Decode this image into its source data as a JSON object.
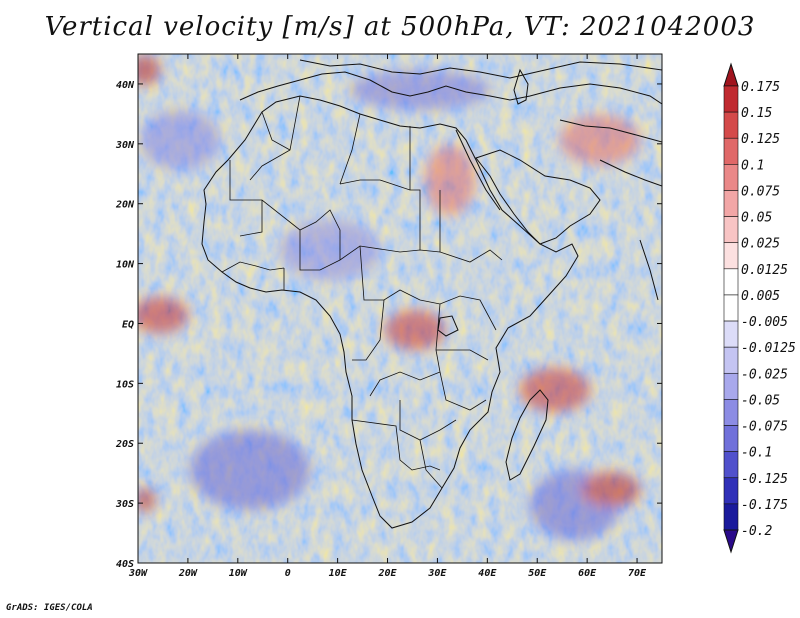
{
  "title": "Vertical velocity [m/s] at 500hPa, VT: 2021042003",
  "footer": "GrADS: IGES/COLA",
  "map": {
    "type": "filled contour map",
    "lon_range": [
      -30,
      75
    ],
    "lat_range": [
      -40,
      45
    ],
    "lat_ticks": [
      "40N",
      "30N",
      "20N",
      "10N",
      "EQ",
      "10S",
      "20S",
      "30S",
      "40S"
    ],
    "lon_ticks": [
      "30W",
      "20W",
      "10W",
      "0",
      "10E",
      "20E",
      "30E",
      "40E",
      "50E",
      "60E",
      "70E"
    ]
  },
  "colorbar": {
    "labels": [
      "0.175",
      "0.15",
      "0.125",
      "0.1",
      "0.075",
      "0.05",
      "0.025",
      "0.0125",
      "0.005",
      "-0.005",
      "-0.0125",
      "-0.025",
      "-0.05",
      "-0.075",
      "-0.1",
      "-0.125",
      "-0.175",
      "-0.2"
    ],
    "colors": [
      "#a0141e",
      "#c02a30",
      "#d44a4a",
      "#e06868",
      "#ea8888",
      "#f2a6a6",
      "#f8c4c4",
      "#fce0e0",
      "#ffffff",
      "#ffffff",
      "#dcdcf8",
      "#c4c4f2",
      "#a8a8ec",
      "#8c8ce4",
      "#7070da",
      "#5050cc",
      "#3030b8",
      "#1a1a9c",
      "#2a0a8a"
    ]
  }
}
